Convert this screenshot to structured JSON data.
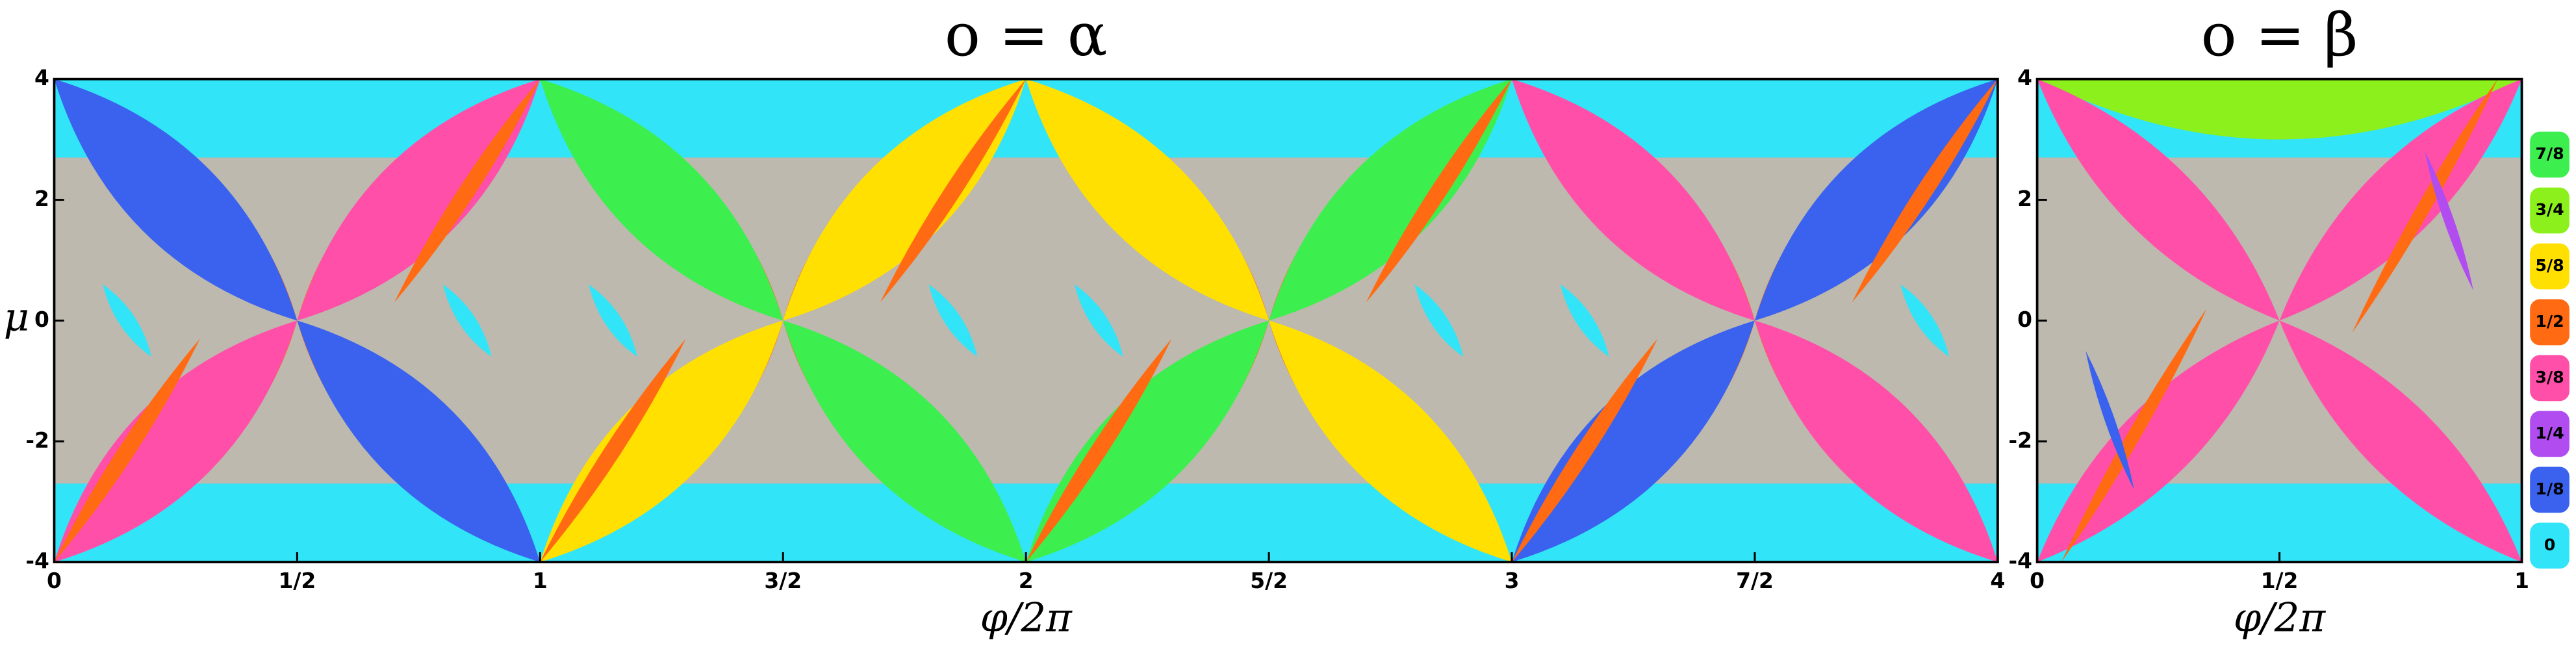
{
  "chart_data": [
    {
      "type": "phase-diagram",
      "title": "o = α",
      "x_label": "φ/2π",
      "y_label": "μ",
      "xlim": [
        0,
        4
      ],
      "ylim": [
        -4,
        4
      ],
      "xticks": [
        0,
        {
          "value": 0.5,
          "label": "1/2"
        },
        1,
        {
          "value": 1.5,
          "label": "3/2"
        },
        2,
        {
          "value": 2.5,
          "label": "5/2"
        },
        3,
        {
          "value": 3.5,
          "label": "7/2"
        },
        4
      ],
      "yticks": [
        -4,
        -2,
        0,
        2,
        4
      ]
    },
    {
      "type": "phase-diagram",
      "title": "o = β",
      "x_label": "φ/2π",
      "xlim": [
        0,
        1
      ],
      "ylim": [
        -4,
        4
      ],
      "xticks": [
        0,
        {
          "value": 0.5,
          "label": "1/2"
        },
        1
      ],
      "yticks": [
        -4,
        -2,
        0,
        2,
        4
      ],
      "legend": [
        {
          "value": 0.875,
          "label": "7/8",
          "color": "#3cef4e"
        },
        {
          "value": 0.75,
          "label": "3/4",
          "color": "#8cf01c"
        },
        {
          "value": 0.625,
          "label": "5/8",
          "color": "#ffe000"
        },
        {
          "value": 0.5,
          "label": "1/2",
          "color": "#ff6a12"
        },
        {
          "value": 0.375,
          "label": "3/8",
          "color": "#ff4fa8"
        },
        {
          "value": 0.25,
          "label": "1/4",
          "color": "#b04cf0"
        },
        {
          "value": 0.125,
          "label": "1/8",
          "color": "#3a62ee"
        },
        {
          "value": 0,
          "label": "0",
          "color": "#32e4f8"
        }
      ]
    }
  ]
}
